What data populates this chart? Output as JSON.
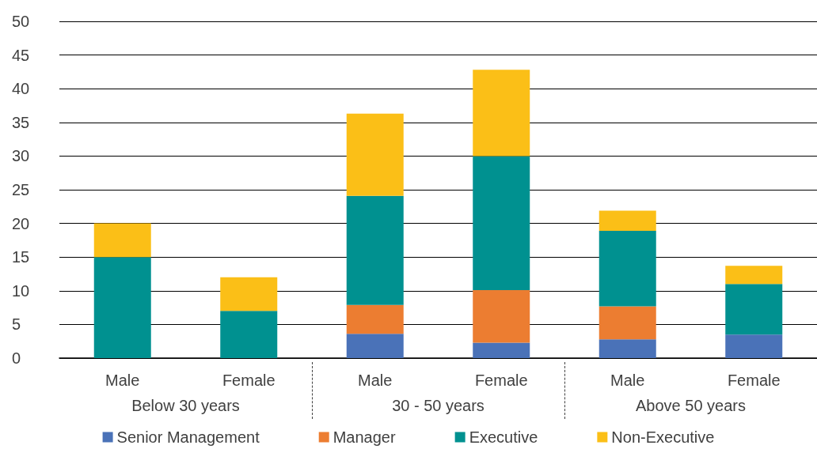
{
  "chart_data": {
    "type": "bar",
    "stacked": true,
    "categories": [
      "Male",
      "Female",
      "Male",
      "Female",
      "Male",
      "Female"
    ],
    "series": [
      {
        "name": "Senior Management",
        "color": "#4a72b8",
        "values": [
          0,
          0,
          3.6,
          2.3,
          2.8,
          3.5
        ]
      },
      {
        "name": "Manager",
        "color": "#ec7d31",
        "values": [
          0,
          0,
          4.3,
          7.8,
          4.9,
          0
        ]
      },
      {
        "name": "Executive",
        "color": "#009190",
        "values": [
          15,
          7,
          16.2,
          19.9,
          11.2,
          7.5
        ]
      },
      {
        "name": "Non-Executive",
        "color": "#fbbf17",
        "values": [
          5,
          5,
          12.2,
          12.8,
          3,
          2.7
        ]
      }
    ],
    "annotations": [
      "Below 30 years",
      "30 - 50 years",
      "Above 50 years"
    ],
    "ylim": [
      0,
      50
    ],
    "yticks": [
      0,
      5,
      10,
      15,
      20,
      25,
      30,
      35,
      40,
      45,
      50
    ],
    "grid": "y",
    "legend": "bottom"
  }
}
